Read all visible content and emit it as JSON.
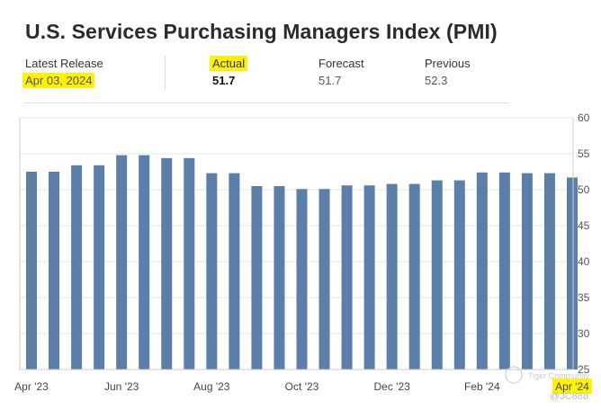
{
  "title": "U.S. Services Purchasing Managers Index (PMI)",
  "stats": {
    "latest_release_label": "Latest Release",
    "latest_release_value": "Apr 03, 2024",
    "actual_label": "Actual",
    "actual_value": "51.7",
    "forecast_label": "Forecast",
    "forecast_value": "51.7",
    "previous_label": "Previous",
    "previous_value": "52.3"
  },
  "watermark": {
    "brand": "Tiger Community",
    "user": "@JC888"
  },
  "colors": {
    "bar": "#5b7fa8",
    "highlight": "#fff200",
    "grid": "#e6e6e6",
    "axis": "#cccccc"
  },
  "chart_data": {
    "type": "bar",
    "title": "U.S. Services Purchasing Managers Index (PMI)",
    "xlabel": "",
    "ylabel": "",
    "ylim": [
      25,
      60
    ],
    "yticks": [
      25,
      30,
      35,
      40,
      45,
      50,
      55,
      60
    ],
    "x_tick_labels": [
      "Apr '23",
      "Jun '23",
      "Aug '23",
      "Oct '23",
      "Dec '23",
      "Feb '24",
      "Apr '24"
    ],
    "highlighted_x_tick": "Apr '24",
    "values": [
      52.5,
      52.5,
      53.4,
      53.4,
      54.8,
      54.8,
      54.4,
      54.4,
      52.3,
      52.3,
      50.5,
      50.5,
      50.1,
      50.1,
      50.6,
      50.6,
      50.8,
      50.8,
      51.3,
      51.3,
      52.4,
      52.4,
      52.3,
      52.3,
      51.7
    ],
    "grid": true,
    "y_axis_position": "right"
  }
}
